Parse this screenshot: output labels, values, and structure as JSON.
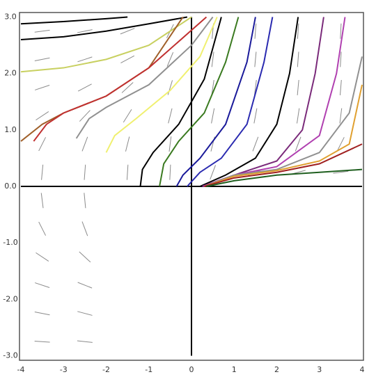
{
  "chart_data": {
    "type": "slope-field",
    "xlim": [
      -4,
      4
    ],
    "ylim": [
      -3.08,
      3.08
    ],
    "xticks": [
      -4,
      -3,
      -2,
      -1,
      0,
      1,
      2,
      3,
      4
    ],
    "yticks": [
      {
        "value": 3,
        "label": "3.0"
      },
      {
        "value": 2,
        "label": "2.0"
      },
      {
        "value": 1,
        "label": "1.0"
      },
      {
        "value": 0,
        "label": "0.0"
      },
      {
        "value": -1,
        "label": "-1.0"
      },
      {
        "value": -2,
        "label": "-2.0"
      },
      {
        "value": -3,
        "label": "-3.0"
      }
    ],
    "field": {
      "color": "#8a8a8a",
      "x": [
        -3.5,
        -3.5,
        -3.5,
        -3.5,
        -3.5,
        -3.5,
        -2.5,
        -2.5,
        -2.5,
        -2.5,
        -2.5,
        -2.5,
        -1.5,
        -1.5,
        -1.5,
        -1.5,
        -1.5,
        -1.5,
        -0.5,
        -0.5,
        -0.5,
        -0.5,
        -0.5,
        -0.5,
        0.5,
        0.5,
        0.5,
        0.5,
        0.5,
        0.5,
        1.5,
        1.5,
        1.5,
        1.5,
        1.5,
        1.5,
        2.5,
        2.5,
        2.5,
        2.5,
        2.5,
        2.5,
        3.5,
        3.5,
        3.5,
        3.5,
        3.5,
        3.5,
        -3.5,
        -3.5,
        -3.5,
        -3.5,
        -3.5,
        -3.5,
        -2.5,
        -2.5,
        -2.5,
        -2.5,
        -2.5,
        -2.5
      ],
      "y": [
        2.75,
        2.25,
        1.75,
        1.25,
        0.75,
        0.25,
        2.75,
        2.25,
        1.75,
        1.25,
        0.75,
        0.25,
        2.75,
        2.25,
        1.75,
        1.25,
        0.75,
        0.25,
        2.75,
        2.25,
        1.75,
        1.25,
        0.75,
        0.25,
        2.75,
        2.25,
        1.75,
        1.25,
        0.75,
        0.25,
        2.75,
        2.25,
        1.75,
        1.25,
        0.75,
        0.25,
        2.75,
        2.25,
        1.75,
        1.25,
        0.75,
        0.25,
        2.75,
        2.25,
        1.75,
        1.25,
        0.75,
        0.25,
        -0.25,
        -0.75,
        -1.25,
        -1.75,
        -2.25,
        -2.75,
        -0.25,
        -0.75,
        -1.25,
        -1.75,
        -2.25,
        -2.75
      ],
      "slope": [
        0.1,
        0.15,
        0.25,
        0.5,
        1.5,
        8,
        0.15,
        0.25,
        0.4,
        0.8,
        2,
        10,
        0.3,
        0.4,
        0.7,
        1.2,
        3,
        12,
        1.5,
        1.8,
        2.5,
        3,
        6,
        15,
        8,
        6,
        5,
        4,
        3,
        2,
        10,
        8,
        6,
        4,
        2,
        0.3,
        12,
        10,
        8,
        5,
        2,
        0.2,
        15,
        12,
        9,
        6,
        1.5,
        0.1,
        -6,
        -1.5,
        -0.5,
        -0.25,
        -0.15,
        -0.05,
        -8,
        -2,
        -0.7,
        -0.3,
        -0.2,
        -0.08
      ]
    },
    "series": [
      {
        "color": "#000000",
        "x": [
          -4,
          -3,
          -2,
          -1.5
        ],
        "values": [
          2.88,
          2.92,
          2.97,
          3.0
        ]
      },
      {
        "color": "#000000",
        "x": [
          -4,
          -3,
          -2,
          -1,
          -0.1
        ],
        "values": [
          2.6,
          2.65,
          2.75,
          2.88,
          3.0
        ]
      },
      {
        "color": "#c8d060",
        "x": [
          -4,
          -3,
          -2,
          -1,
          -0.3,
          0
        ],
        "values": [
          2.03,
          2.1,
          2.25,
          2.5,
          2.85,
          3.0
        ]
      },
      {
        "color": "#a0602a",
        "x": [
          -4,
          -3.5,
          -3,
          -2,
          -1,
          -0.2
        ],
        "values": [
          0.8,
          1.1,
          1.3,
          1.6,
          2.1,
          3.0
        ]
      },
      {
        "color": "#c03030",
        "x": [
          -3.7,
          -3.4,
          -3,
          -2,
          -1,
          0.35
        ],
        "values": [
          0.8,
          1.1,
          1.3,
          1.6,
          2.1,
          3.0
        ]
      },
      {
        "color": "#909090",
        "x": [
          -2.7,
          -2.4,
          -2,
          -1,
          0,
          0.5
        ],
        "values": [
          0.85,
          1.2,
          1.4,
          1.8,
          2.5,
          3.0
        ]
      },
      {
        "color": "#f0f070",
        "x": [
          -2,
          -1.8,
          -1.3,
          -0.5,
          0.2,
          0.6
        ],
        "values": [
          0.6,
          0.9,
          1.2,
          1.7,
          2.3,
          3.0
        ]
      },
      {
        "color": "#000000",
        "x": [
          -1.2,
          -1.15,
          -0.9,
          -0.3,
          0.3,
          0.7
        ],
        "values": [
          0,
          0.3,
          0.6,
          1.1,
          1.9,
          3.0
        ]
      },
      {
        "color": "#3a7a20",
        "x": [
          -0.75,
          -0.65,
          -0.3,
          0.3,
          0.8,
          1.1
        ],
        "values": [
          0,
          0.4,
          0.8,
          1.3,
          2.2,
          3.0
        ]
      },
      {
        "color": "#1a1a9a",
        "x": [
          -0.35,
          -0.2,
          0.2,
          0.8,
          1.3,
          1.5
        ],
        "values": [
          0,
          0.2,
          0.5,
          1.1,
          2.2,
          3.0
        ]
      },
      {
        "color": "#2a2ab0",
        "x": [
          -0.1,
          0.2,
          0.7,
          1.3,
          1.7,
          1.9
        ],
        "values": [
          0,
          0.25,
          0.5,
          1.1,
          2.2,
          3.0
        ]
      },
      {
        "color": "#000000",
        "x": [
          0.2,
          0.8,
          1.5,
          2,
          2.3,
          2.5
        ],
        "values": [
          0,
          0.2,
          0.5,
          1.1,
          2.0,
          3.0
        ]
      },
      {
        "color": "#7a2a7a",
        "x": [
          0.25,
          1,
          2,
          2.6,
          2.9,
          3.1
        ],
        "values": [
          0,
          0.2,
          0.45,
          1,
          2,
          3
        ]
      },
      {
        "color": "#b040b0",
        "x": [
          0.28,
          1,
          2,
          3,
          3.4,
          3.6
        ],
        "values": [
          0,
          0.2,
          0.35,
          0.9,
          2,
          3
        ]
      },
      {
        "color": "#909090",
        "x": [
          0.3,
          1,
          2,
          3,
          3.7,
          4
        ],
        "values": [
          0,
          0.2,
          0.3,
          0.6,
          1.3,
          2.3
        ]
      },
      {
        "color": "#e0a030",
        "x": [
          0.3,
          1,
          2,
          3,
          3.7,
          4
        ],
        "values": [
          0,
          0.18,
          0.28,
          0.45,
          0.75,
          1.8
        ]
      },
      {
        "color": "#a02020",
        "x": [
          0.3,
          1,
          2,
          3,
          4
        ],
        "values": [
          0,
          0.15,
          0.25,
          0.4,
          0.75
        ]
      },
      {
        "color": "#1f5f1f",
        "x": [
          0.35,
          1,
          2,
          3,
          4
        ],
        "values": [
          0,
          0.1,
          0.2,
          0.25,
          0.3
        ]
      }
    ]
  }
}
